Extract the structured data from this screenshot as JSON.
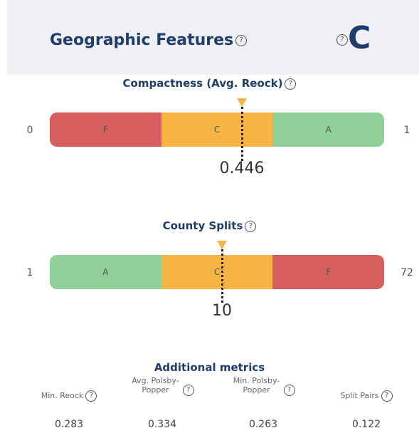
{
  "header": {
    "title": "Geographic Features",
    "grade": "C"
  },
  "metrics": [
    {
      "title": "Compactness (Avg. Reock)",
      "min": "0",
      "max": "1",
      "value": "0.446",
      "segments": [
        {
          "label": "F",
          "color": "#d45f5c"
        },
        {
          "label": "C",
          "color": "#f6b443"
        },
        {
          "label": "A",
          "color": "#90cf98"
        }
      ]
    },
    {
      "title": "County Splits",
      "min": "1",
      "max": "72",
      "value": "10",
      "segments": [
        {
          "label": "A",
          "color": "#90cf98"
        },
        {
          "label": "C",
          "color": "#f6b443"
        },
        {
          "label": "F",
          "color": "#d45f5c"
        }
      ]
    }
  ],
  "additional": {
    "title": "Additional metrics",
    "items": [
      {
        "label": "Min. Reock",
        "value": "0.283"
      },
      {
        "label": "Avg. Polsby-Popper",
        "value": "0.334"
      },
      {
        "label": "Min. Polsby-Popper",
        "value": "0.263"
      },
      {
        "label": "Split Pairs",
        "value": "0.122"
      }
    ]
  }
}
